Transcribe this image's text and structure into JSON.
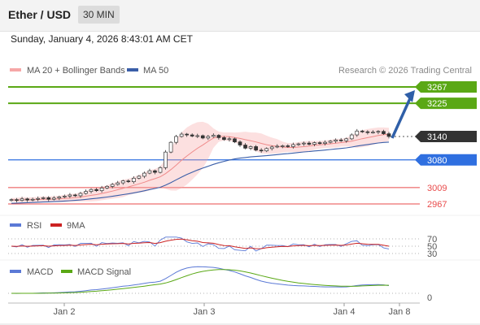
{
  "header": {
    "pair": "Ether / USD",
    "timeframe": "30 MIN"
  },
  "datetime": "Sunday, January 4, 2026 8:43:01 AM CET",
  "legend": {
    "bollinger": "MA 20 + Bollinger Bands",
    "ma50": "MA 50"
  },
  "credit": "Research © 2026 Trading Central",
  "rsi_legend": {
    "rsi": "RSI",
    "ma": "9MA"
  },
  "macd_legend": {
    "macd": "MACD",
    "signal": "MACD Signal"
  },
  "colors": {
    "resistance": "#5aa815",
    "support": "#2f6fe0",
    "low_levels": "#e94b4b",
    "last_price": "#333333",
    "arrow": "#2f5fa8",
    "bollinger": "#f6a7a7",
    "ma50": "#3a5ea8",
    "rsi": "#5b79d6",
    "rsi_ma": "#cc2222",
    "macd": "#5b79d6",
    "macd_signal": "#5aa815"
  },
  "chart_data": [
    {
      "type": "candlestick",
      "panel": "price",
      "x_ticks": [
        "Jan 2",
        "Jan 3",
        "Jan 4",
        "Jan 8"
      ],
      "levels": [
        {
          "label": "3267",
          "value": 3267,
          "kind": "resistance"
        },
        {
          "label": "3225",
          "value": 3225,
          "kind": "resistance"
        },
        {
          "label": "3140",
          "value": 3140,
          "kind": "last"
        },
        {
          "label": "3080",
          "value": 3080,
          "kind": "support"
        },
        {
          "label": "3009",
          "value": 3009,
          "kind": "low"
        },
        {
          "label": "2967",
          "value": 2967,
          "kind": "low"
        }
      ],
      "close": [
        2978,
        2976,
        2980,
        2977,
        2979,
        2981,
        2983,
        2979,
        2982,
        2985,
        2987,
        2990,
        2988,
        2994,
        2999,
        3004,
        3001,
        3008,
        3012,
        3017,
        3021,
        3026,
        3024,
        3033,
        3038,
        3046,
        3052,
        3048,
        3060,
        3100,
        3125,
        3140,
        3146,
        3144,
        3141,
        3142,
        3136,
        3140,
        3143,
        3137,
        3132,
        3134,
        3126,
        3118,
        3110,
        3114,
        3105,
        3103,
        3109,
        3113,
        3115,
        3116,
        3114,
        3119,
        3121,
        3123,
        3120,
        3124,
        3122,
        3125,
        3128,
        3131,
        3129,
        3134,
        3144,
        3154,
        3152,
        3150,
        3151,
        3153,
        3147,
        3140
      ],
      "ma50_note": "smooth rising moving average",
      "arrow_target": 3267
    },
    {
      "type": "line",
      "panel": "rsi",
      "ticks": [
        "70",
        "50",
        "30"
      ],
      "series": [
        {
          "name": "RSI"
        },
        {
          "name": "9MA"
        }
      ]
    },
    {
      "type": "line",
      "panel": "macd",
      "ticks": [
        "0"
      ],
      "series": [
        {
          "name": "MACD"
        },
        {
          "name": "MACD Signal"
        }
      ]
    }
  ]
}
